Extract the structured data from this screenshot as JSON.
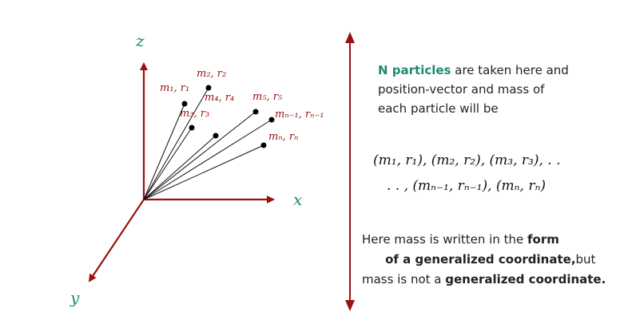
{
  "diagram": {
    "axes": {
      "z": "z",
      "x": "x",
      "y": "y"
    },
    "particles": [
      "m₁, r₁",
      "m₂, r₂",
      "m₃, r₃",
      "m₄, r₄",
      "m₅, r₅",
      "mₙ₋₁, rₙ₋₁",
      "mₙ, rₙ"
    ],
    "description": {
      "highlight": "N particles",
      "line1_rest": " are taken here and",
      "line2": "position-vector and mass of",
      "line3": "each particle will be"
    },
    "formula": [
      "(m₁, r₁), (m₂, r₂), (m₃, r₃), . .",
      ". . , (mₙ₋₁, rₙ₋₁), (mₙ, rₙ)"
    ],
    "note": {
      "l1_a": "Here mass is written in the ",
      "l1_b": "form",
      "l2_a": " of a generalized coordinate,",
      "l2_b": "but",
      "l3_a": "mass is not a ",
      "l3_b": "generalized coordinate."
    }
  }
}
